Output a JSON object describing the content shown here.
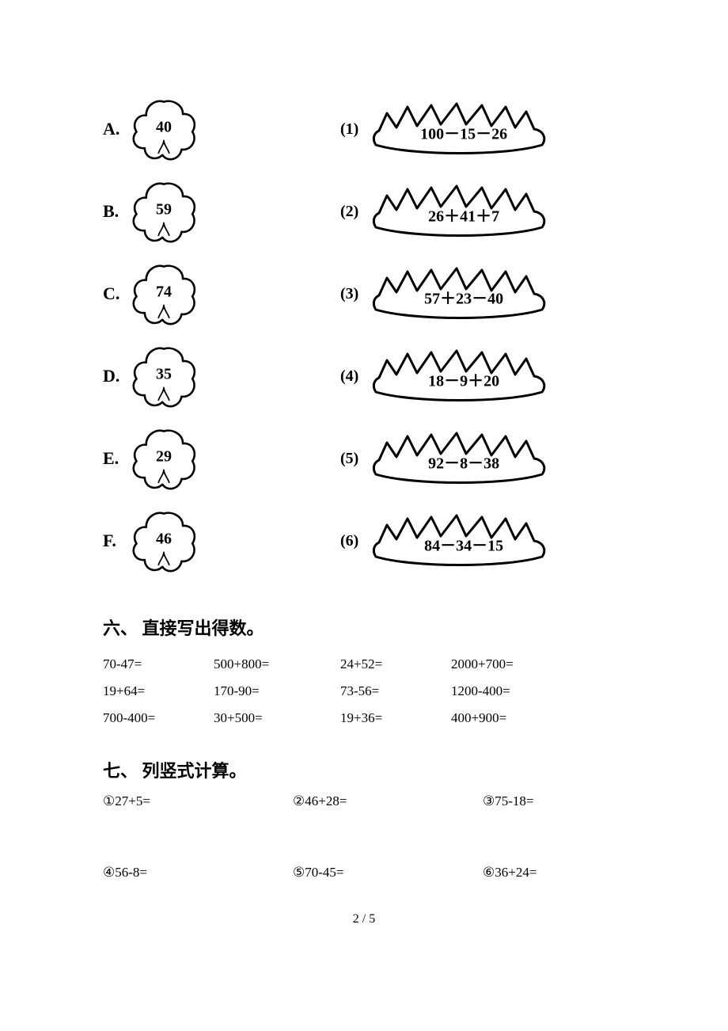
{
  "matching": {
    "left": [
      {
        "letter": "A.",
        "value": "40"
      },
      {
        "letter": "B.",
        "value": "59"
      },
      {
        "letter": "C.",
        "value": "74"
      },
      {
        "letter": "D.",
        "value": "35"
      },
      {
        "letter": "E.",
        "value": "29"
      },
      {
        "letter": "F.",
        "value": "46"
      }
    ],
    "right": [
      {
        "num": "(1)",
        "expr": "100－15－26"
      },
      {
        "num": "(2)",
        "expr": "26＋41＋7"
      },
      {
        "num": "(3)",
        "expr": "57＋23－40"
      },
      {
        "num": "(4)",
        "expr": "18－9＋20"
      },
      {
        "num": "(5)",
        "expr": "92－8－38"
      },
      {
        "num": "(6)",
        "expr": "84－34－15"
      }
    ]
  },
  "section6": {
    "title": "六、 直接写出得数。",
    "rows": [
      [
        "70-47=",
        "500+800=",
        "24+52=",
        "2000+700="
      ],
      [
        "19+64=",
        "170-90=",
        "73-56=",
        "1200-400="
      ],
      [
        "700-400=",
        "30+500=",
        "19+36=",
        "400+900="
      ]
    ]
  },
  "section7": {
    "title": "七、 列竖式计算。",
    "rows": [
      [
        "①27+5=",
        "②46+28=",
        "③75-18="
      ],
      [
        "④56-8=",
        "⑤70-45=",
        "⑥36+24="
      ]
    ]
  },
  "footer": "2 / 5",
  "style": {
    "stroke": "#000000",
    "stroke_width_flower": 3,
    "stroke_width_grass": 3,
    "background": "#ffffff"
  }
}
